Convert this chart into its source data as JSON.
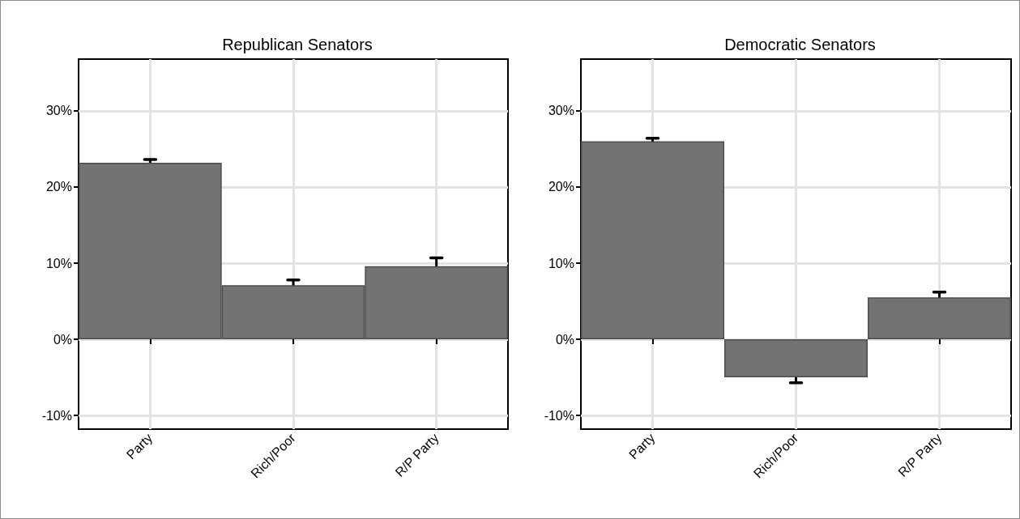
{
  "chart_data": [
    {
      "type": "bar",
      "title": "Republican Senators",
      "categories": [
        "Party",
        "Rich/Poor",
        "R/P Party"
      ],
      "values": [
        23.2,
        7.1,
        9.6
      ],
      "errors": [
        0.4,
        0.7,
        1.1
      ],
      "color": "#737373",
      "ylim": [
        -11.8,
        36.8
      ],
      "yticks": [
        {
          "value": -10,
          "label": "-10%"
        },
        {
          "value": 0,
          "label": "0%"
        },
        {
          "value": 10,
          "label": "10%"
        },
        {
          "value": 20,
          "label": "20%"
        },
        {
          "value": 30,
          "label": "30%"
        }
      ],
      "grid": true
    },
    {
      "type": "bar",
      "title": "Democratic Senators",
      "categories": [
        "Party",
        "Rich/Poor",
        "R/P Party"
      ],
      "values": [
        26.0,
        -5.0,
        5.5
      ],
      "errors": [
        0.4,
        0.7,
        0.7
      ],
      "color": "#737373",
      "ylim": [
        -11.8,
        36.8
      ],
      "yticks": [
        {
          "value": -10,
          "label": "-10%"
        },
        {
          "value": 0,
          "label": "0%"
        },
        {
          "value": 10,
          "label": "10%"
        },
        {
          "value": 20,
          "label": "20%"
        },
        {
          "value": 30,
          "label": "30%"
        }
      ],
      "grid": true
    }
  ]
}
